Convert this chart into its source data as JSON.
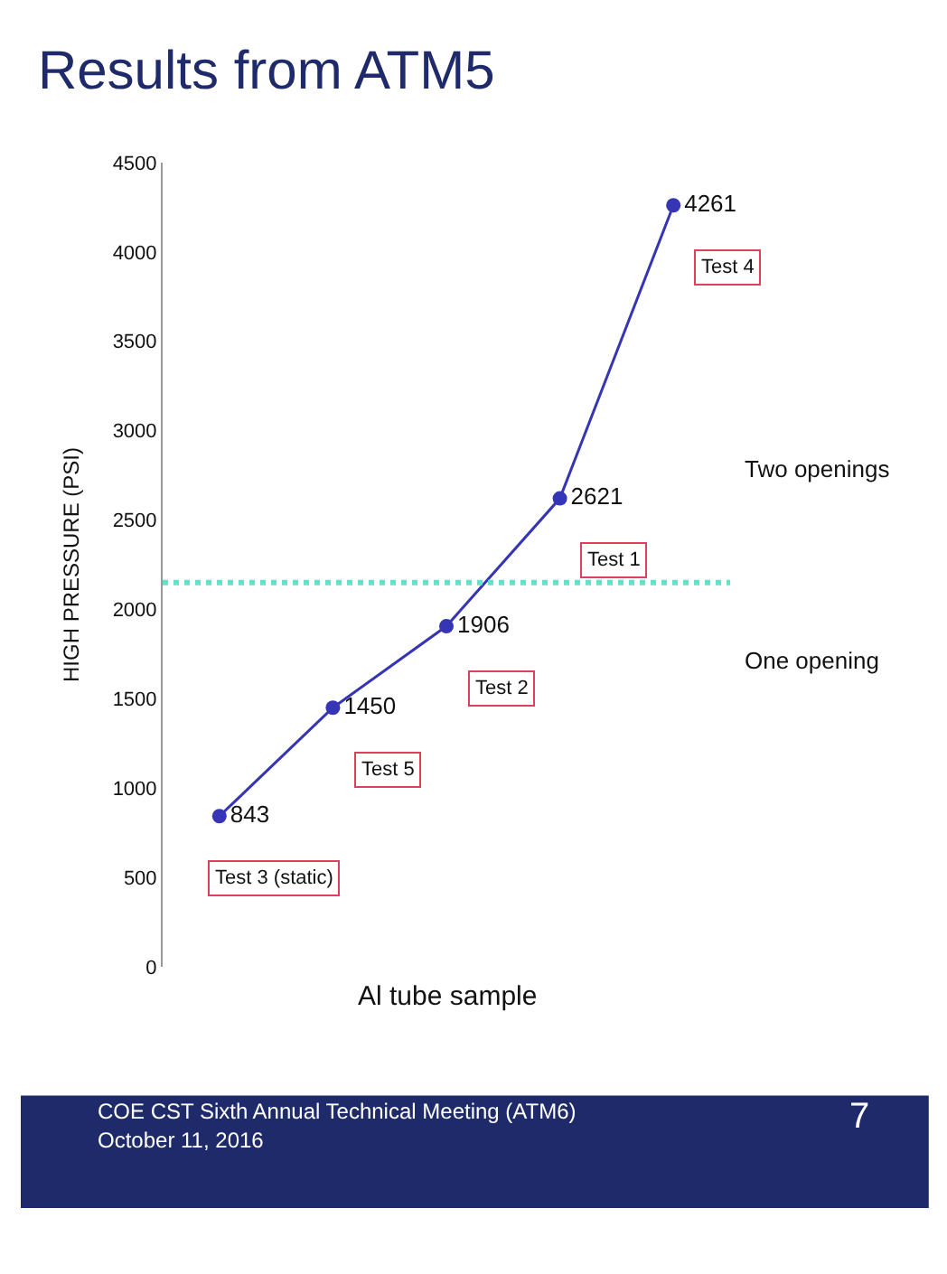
{
  "chart_data": {
    "type": "line",
    "title": "Results from ATM5",
    "ylabel": "HIGH PRESSURE (PSI)",
    "categories": [
      null,
      null,
      null,
      null,
      null
    ],
    "series": [
      {
        "color": "#3535b5",
        "values": [
          843,
          1450,
          1906,
          2621,
          4261
        ]
      }
    ],
    "ylim": [
      0,
      4500
    ],
    "yticks": [
      0,
      500,
      1000,
      1500,
      2000,
      2500,
      3000,
      3500,
      4000,
      4500
    ],
    "tick_labels": "y",
    "marker": "circle",
    "line_style": "solid",
    "data_labels": true,
    "ref_lines": [
      {
        "axis": "y",
        "value": 2150,
        "color": "#66e0c8",
        "line_style": "dotted"
      }
    ],
    "annotations": [
      "Test 3 (static)",
      "Test 5",
      "Test 2",
      "Test 1",
      "Test 4",
      "Two openings",
      "One opening",
      "Al tube sample",
      "COE CST Sixth Annual Technical Meeting (ATM6)",
      "October 11, 2016",
      "7"
    ]
  }
}
